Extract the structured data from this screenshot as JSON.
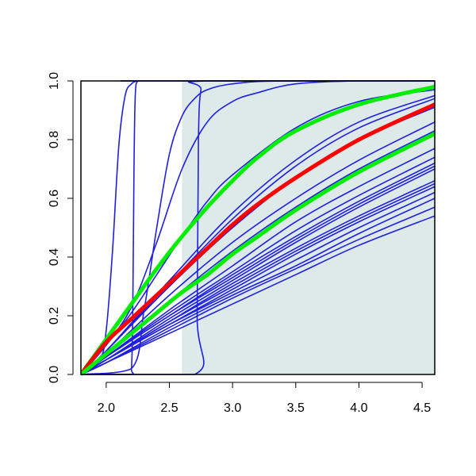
{
  "chart_data": {
    "type": "line",
    "title": "",
    "xlabel": "",
    "ylabel": "",
    "xlim": [
      1.8,
      4.6
    ],
    "ylim": [
      0.0,
      1.0
    ],
    "xticks": [
      "2.0",
      "2.5",
      "3.0",
      "3.5",
      "4.0",
      "4.5"
    ],
    "yticks": [
      "0.0",
      "0.2",
      "0.4",
      "0.6",
      "0.8",
      "1.0"
    ],
    "grid": false,
    "shaded_region": {
      "x": [
        2.6,
        4.6
      ],
      "y": [
        0.0,
        1.0
      ],
      "color": "#deeaea"
    },
    "colors": {
      "blue": "#1f1fe0",
      "red": "#ff0000",
      "green": "#00ee00"
    },
    "series": [
      {
        "color": "blue",
        "x": [
          1.8,
          1.95,
          2.0,
          2.05,
          2.1,
          2.15,
          2.2,
          2.25,
          2.3,
          4.6
        ],
        "y": [
          0.0,
          0.05,
          0.15,
          0.42,
          0.78,
          0.95,
          0.99,
          1.0,
          1.0,
          1.0
        ]
      },
      {
        "color": "blue",
        "x": [
          1.8,
          2.18,
          2.2,
          2.21,
          2.22,
          2.23,
          2.25,
          2.3,
          4.6
        ],
        "y": [
          0.0,
          0.0,
          0.02,
          0.2,
          0.7,
          0.95,
          1.0,
          1.0,
          1.0
        ]
      },
      {
        "color": "blue",
        "x": [
          1.8,
          2.2,
          2.3,
          2.4,
          2.5,
          2.6,
          2.7,
          2.8,
          3.0,
          3.4,
          4.6
        ],
        "y": [
          0.0,
          0.02,
          0.22,
          0.5,
          0.75,
          0.88,
          0.94,
          0.97,
          0.99,
          1.0,
          1.0
        ]
      },
      {
        "color": "blue",
        "x": [
          1.8,
          2.7,
          2.72,
          2.73,
          2.75,
          2.8,
          4.6
        ],
        "y": [
          0.0,
          0.0,
          0.2,
          0.8,
          0.97,
          1.0,
          1.0
        ]
      },
      {
        "color": "blue",
        "x": [
          1.8,
          2.0,
          2.2,
          2.4,
          2.6,
          2.8,
          3.0,
          3.2,
          3.5,
          4.0,
          4.6
        ],
        "y": [
          0.0,
          0.1,
          0.23,
          0.45,
          0.7,
          0.86,
          0.93,
          0.96,
          0.99,
          1.0,
          1.0
        ]
      },
      {
        "color": "blue",
        "x": [
          1.8,
          2.0,
          2.2,
          2.4,
          2.6,
          2.8,
          3.0,
          3.5,
          4.0,
          4.6
        ],
        "y": [
          0.0,
          0.1,
          0.21,
          0.34,
          0.47,
          0.59,
          0.68,
          0.84,
          0.93,
          0.97
        ]
      },
      {
        "color": "blue",
        "x": [
          1.8,
          2.0,
          2.5,
          3.0,
          3.5,
          4.0,
          4.6
        ],
        "y": [
          0.0,
          0.08,
          0.32,
          0.55,
          0.73,
          0.86,
          0.95
        ]
      },
      {
        "color": "blue",
        "x": [
          1.8,
          2.0,
          2.5,
          3.0,
          3.5,
          4.0,
          4.6
        ],
        "y": [
          0.0,
          0.08,
          0.31,
          0.53,
          0.71,
          0.84,
          0.94
        ]
      },
      {
        "color": "blue",
        "x": [
          1.8,
          2.0,
          2.5,
          3.0,
          3.5,
          4.0,
          4.6
        ],
        "y": [
          0.0,
          0.08,
          0.3,
          0.5,
          0.67,
          0.8,
          0.91
        ]
      },
      {
        "color": "blue",
        "x": [
          1.8,
          2.0,
          2.5,
          3.0,
          3.5,
          4.0,
          4.6
        ],
        "y": [
          0.0,
          0.07,
          0.27,
          0.45,
          0.6,
          0.73,
          0.86
        ]
      },
      {
        "color": "blue",
        "x": [
          1.8,
          2.0,
          2.5,
          3.0,
          3.5,
          4.0,
          4.6
        ],
        "y": [
          0.0,
          0.07,
          0.25,
          0.42,
          0.57,
          0.7,
          0.83
        ]
      },
      {
        "color": "blue",
        "x": [
          1.8,
          2.0,
          2.5,
          3.0,
          3.5,
          4.0,
          4.6
        ],
        "y": [
          0.0,
          0.06,
          0.22,
          0.37,
          0.52,
          0.64,
          0.77
        ]
      },
      {
        "color": "blue",
        "x": [
          1.8,
          2.0,
          2.5,
          3.0,
          3.5,
          4.0,
          4.6
        ],
        "y": [
          0.0,
          0.06,
          0.21,
          0.35,
          0.49,
          0.61,
          0.74
        ]
      },
      {
        "color": "blue",
        "x": [
          1.8,
          2.0,
          2.5,
          3.0,
          3.5,
          4.0,
          4.6
        ],
        "y": [
          0.0,
          0.06,
          0.2,
          0.34,
          0.47,
          0.59,
          0.72
        ]
      },
      {
        "color": "blue",
        "x": [
          1.8,
          2.0,
          2.5,
          3.0,
          3.5,
          4.0,
          4.6
        ],
        "y": [
          0.0,
          0.06,
          0.2,
          0.33,
          0.46,
          0.58,
          0.71
        ]
      },
      {
        "color": "blue",
        "x": [
          1.8,
          2.0,
          2.5,
          3.0,
          3.5,
          4.0,
          4.6
        ],
        "y": [
          0.0,
          0.05,
          0.19,
          0.32,
          0.45,
          0.57,
          0.7
        ]
      },
      {
        "color": "blue",
        "x": [
          1.8,
          2.0,
          2.5,
          3.0,
          3.5,
          4.0,
          4.6
        ],
        "y": [
          0.0,
          0.05,
          0.18,
          0.31,
          0.43,
          0.54,
          0.66
        ]
      },
      {
        "color": "blue",
        "x": [
          1.8,
          2.0,
          2.5,
          3.0,
          3.5,
          4.0,
          4.6
        ],
        "y": [
          0.0,
          0.05,
          0.18,
          0.3,
          0.42,
          0.53,
          0.65
        ]
      },
      {
        "color": "blue",
        "x": [
          1.8,
          2.0,
          2.5,
          3.0,
          3.5,
          4.0,
          4.6
        ],
        "y": [
          0.0,
          0.05,
          0.17,
          0.29,
          0.41,
          0.52,
          0.64
        ]
      },
      {
        "color": "blue",
        "x": [
          1.8,
          2.0,
          2.5,
          3.0,
          3.5,
          4.0,
          4.6
        ],
        "y": [
          0.0,
          0.05,
          0.17,
          0.28,
          0.39,
          0.5,
          0.62
        ]
      },
      {
        "color": "blue",
        "x": [
          1.8,
          2.0,
          2.5,
          3.0,
          3.5,
          4.0,
          4.6
        ],
        "y": [
          0.0,
          0.04,
          0.16,
          0.27,
          0.37,
          0.48,
          0.6
        ]
      },
      {
        "color": "blue",
        "x": [
          1.8,
          2.0,
          2.5,
          3.0,
          3.5,
          4.0,
          4.6
        ],
        "y": [
          0.0,
          0.04,
          0.15,
          0.26,
          0.36,
          0.46,
          0.57
        ]
      },
      {
        "color": "blue",
        "x": [
          1.8,
          2.0,
          2.5,
          3.0,
          3.5,
          4.0,
          4.6
        ],
        "y": [
          0.0,
          0.04,
          0.14,
          0.24,
          0.34,
          0.44,
          0.54
        ]
      },
      {
        "color": "green",
        "thick": true,
        "x": [
          1.8,
          2.0,
          2.2,
          2.4,
          2.6,
          2.8,
          3.0,
          3.2,
          3.5,
          4.0,
          4.6
        ],
        "y": [
          0.0,
          0.12,
          0.24,
          0.36,
          0.47,
          0.57,
          0.66,
          0.74,
          0.83,
          0.92,
          0.98
        ]
      },
      {
        "color": "red",
        "thick": true,
        "x": [
          1.8,
          2.0,
          2.2,
          2.4,
          2.6,
          2.8,
          3.0,
          3.2,
          3.5,
          4.0,
          4.6
        ],
        "y": [
          0.0,
          0.11,
          0.19,
          0.27,
          0.35,
          0.43,
          0.51,
          0.58,
          0.67,
          0.8,
          0.92
        ]
      },
      {
        "color": "green",
        "thick": true,
        "x": [
          1.8,
          2.0,
          2.2,
          2.4,
          2.6,
          2.8,
          3.0,
          3.2,
          3.5,
          4.0,
          4.6
        ],
        "y": [
          0.0,
          0.07,
          0.14,
          0.21,
          0.28,
          0.34,
          0.41,
          0.47,
          0.56,
          0.69,
          0.82
        ]
      }
    ]
  }
}
